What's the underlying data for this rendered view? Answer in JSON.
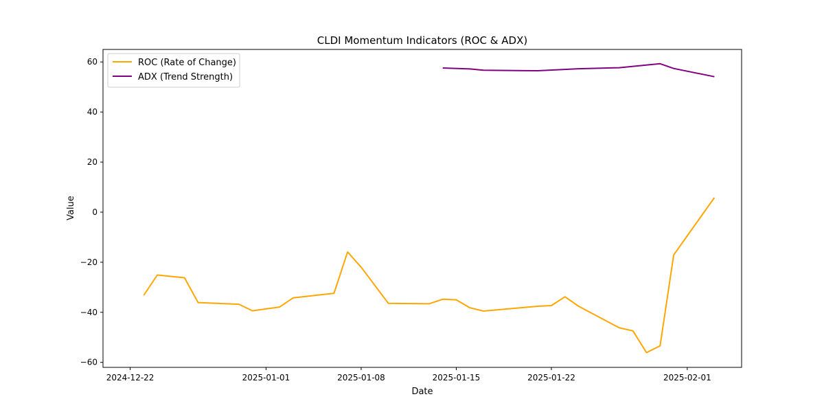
{
  "chart_data": {
    "type": "line",
    "title": "CLDI Momentum Indicators (ROC & ADX)",
    "xlabel": "Date",
    "ylabel": "Value",
    "xlim": [
      "2024-12-20",
      "2025-02-05"
    ],
    "ylim": [
      -62,
      65
    ],
    "x_ticks": [
      "2024-12-22",
      "2025-01-01",
      "2025-01-08",
      "2025-01-15",
      "2025-01-22",
      "2025-02-01"
    ],
    "y_ticks": [
      -60,
      -40,
      -20,
      0,
      20,
      40,
      60
    ],
    "grid": false,
    "legend_position": "upper-left",
    "series": [
      {
        "name": "ROC (Rate of Change)",
        "color": "#FFA500",
        "x": [
          "2024-12-23",
          "2024-12-24",
          "2024-12-26",
          "2024-12-27",
          "2024-12-30",
          "2024-12-31",
          "2025-01-02",
          "2025-01-03",
          "2025-01-06",
          "2025-01-07",
          "2025-01-08",
          "2025-01-10",
          "2025-01-13",
          "2025-01-14",
          "2025-01-15",
          "2025-01-16",
          "2025-01-17",
          "2025-01-21",
          "2025-01-22",
          "2025-01-23",
          "2025-01-24",
          "2025-01-27",
          "2025-01-28",
          "2025-01-29",
          "2025-01-30",
          "2025-01-31",
          "2025-02-03"
        ],
        "y": [
          -33.2,
          -25.1,
          -26.2,
          -36.1,
          -36.8,
          -39.4,
          -37.9,
          -34.2,
          -32.4,
          -15.9,
          -22.0,
          -36.4,
          -36.6,
          -34.8,
          -35.0,
          -38.2,
          -39.5,
          -37.6,
          -37.3,
          -33.8,
          -37.6,
          -46.2,
          -47.4,
          -56.1,
          -53.4,
          -17.1,
          5.8
        ]
      },
      {
        "name": "ADX (Trend Strength)",
        "color": "#800080",
        "x": [
          "2025-01-14",
          "2025-01-16",
          "2025-01-17",
          "2025-01-21",
          "2025-01-24",
          "2025-01-27",
          "2025-01-30",
          "2025-01-31",
          "2025-02-03"
        ],
        "y": [
          57.6,
          57.2,
          56.7,
          56.5,
          57.3,
          57.7,
          59.3,
          57.4,
          54.1
        ]
      }
    ]
  }
}
